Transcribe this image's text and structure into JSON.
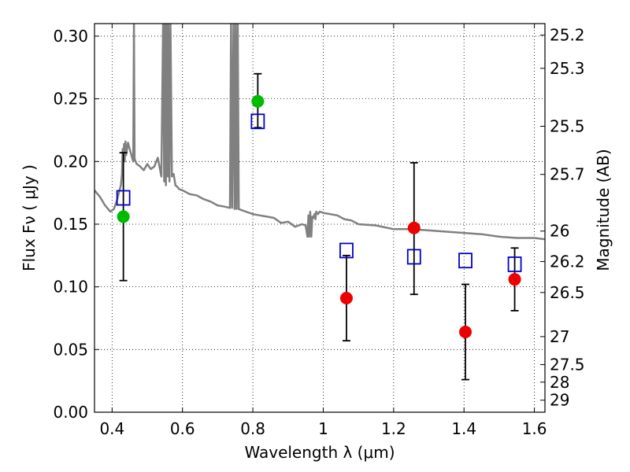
{
  "chart_data": {
    "type": "scatter",
    "xlabel": "Wavelength  λ (μm)",
    "ylabel": "Flux  Fν ( μJy )",
    "y2label": "Magnitude (AB)",
    "xlim": [
      0.35,
      1.63
    ],
    "ylim": [
      0.0,
      0.31
    ],
    "grid": true,
    "x_ticks": [
      {
        "value": 0.4,
        "label": "0.4"
      },
      {
        "value": 0.6,
        "label": "0.6"
      },
      {
        "value": 0.8,
        "label": "0.8"
      },
      {
        "value": 1.0,
        "label": "1"
      },
      {
        "value": 1.2,
        "label": "1.2"
      },
      {
        "value": 1.4,
        "label": "1.4"
      },
      {
        "value": 1.6,
        "label": "1.6"
      }
    ],
    "y_ticks": [
      {
        "value": 0.0,
        "label": "0.00"
      },
      {
        "value": 0.05,
        "label": "0.05"
      },
      {
        "value": 0.1,
        "label": "0.10"
      },
      {
        "value": 0.15,
        "label": "0.15"
      },
      {
        "value": 0.2,
        "label": "0.20"
      },
      {
        "value": 0.25,
        "label": "0.25"
      },
      {
        "value": 0.3,
        "label": "0.30"
      }
    ],
    "y2_ticks": [
      {
        "flux": 0.3008,
        "label": "25.2"
      },
      {
        "flux": 0.2743,
        "label": "25.3"
      },
      {
        "flux": 0.2281,
        "label": "25.5"
      },
      {
        "flux": 0.1897,
        "label": "25.7"
      },
      {
        "flux": 0.1445,
        "label": "26"
      },
      {
        "flux": 0.1202,
        "label": "26.2"
      },
      {
        "flux": 0.0955,
        "label": "26.5"
      },
      {
        "flux": 0.0603,
        "label": "27"
      },
      {
        "flux": 0.038,
        "label": "27.5"
      },
      {
        "flux": 0.024,
        "label": "28"
      },
      {
        "flux": 0.0096,
        "label": "29"
      }
    ],
    "series": [
      {
        "kind": "observed_green",
        "color": "#00bb00",
        "points": [
          {
            "x": 0.432,
            "y": 0.156,
            "yerr_low": 0.105,
            "yerr_high": 0.207
          },
          {
            "x": 0.814,
            "y": 0.248,
            "yerr_low": 0.227,
            "yerr_high": 0.27
          }
        ]
      },
      {
        "kind": "observed_red",
        "color": "#ee0000",
        "points": [
          {
            "x": 1.066,
            "y": 0.091,
            "yerr_low": 0.057,
            "yerr_high": 0.125
          },
          {
            "x": 1.258,
            "y": 0.147,
            "yerr_low": 0.094,
            "yerr_high": 0.199
          },
          {
            "x": 1.404,
            "y": 0.064,
            "yerr_low": 0.026,
            "yerr_high": 0.102
          },
          {
            "x": 1.544,
            "y": 0.106,
            "yerr_low": 0.081,
            "yerr_high": 0.131
          }
        ]
      },
      {
        "kind": "model_squares",
        "color": "#0000cc",
        "points": [
          {
            "x": 0.432,
            "y": 0.171
          },
          {
            "x": 0.814,
            "y": 0.232
          },
          {
            "x": 1.066,
            "y": 0.129
          },
          {
            "x": 1.258,
            "y": 0.124
          },
          {
            "x": 1.404,
            "y": 0.121
          },
          {
            "x": 1.544,
            "y": 0.118
          }
        ]
      },
      {
        "kind": "model_spectrum",
        "color": "#808080",
        "x": [
          0.35,
          0.365,
          0.38,
          0.395,
          0.405,
          0.415,
          0.42,
          0.425,
          0.428,
          0.43,
          0.432,
          0.434,
          0.436,
          0.438,
          0.44,
          0.445,
          0.45,
          0.455,
          0.46,
          0.462,
          0.464,
          0.47,
          0.48,
          0.49,
          0.5,
          0.51,
          0.52,
          0.53,
          0.54,
          0.545,
          0.548,
          0.55,
          0.553,
          0.555,
          0.558,
          0.56,
          0.563,
          0.566,
          0.57,
          0.575,
          0.58,
          0.585,
          0.59,
          0.6,
          0.62,
          0.64,
          0.66,
          0.68,
          0.7,
          0.72,
          0.735,
          0.738,
          0.741,
          0.745,
          0.748,
          0.751,
          0.754,
          0.757,
          0.76,
          0.78,
          0.8,
          0.82,
          0.84,
          0.86,
          0.88,
          0.9,
          0.92,
          0.94,
          0.95,
          0.955,
          0.958,
          0.96,
          0.963,
          0.966,
          0.969,
          0.972,
          0.975,
          0.978,
          0.98,
          0.985,
          0.99,
          1.0,
          1.02,
          1.04,
          1.06,
          1.08,
          1.1,
          1.15,
          1.2,
          1.25,
          1.3,
          1.35,
          1.4,
          1.45,
          1.5,
          1.55,
          1.6,
          1.63
        ],
        "y": [
          0.177,
          0.172,
          0.165,
          0.16,
          0.162,
          0.17,
          0.176,
          0.181,
          0.19,
          0.21,
          0.2,
          0.214,
          0.2,
          0.216,
          0.205,
          0.215,
          0.21,
          0.205,
          0.2,
          0.31,
          0.202,
          0.198,
          0.196,
          0.193,
          0.198,
          0.194,
          0.196,
          0.203,
          0.188,
          0.31,
          0.184,
          0.31,
          0.181,
          0.31,
          0.188,
          0.31,
          0.184,
          0.31,
          0.188,
          0.19,
          0.181,
          0.18,
          0.178,
          0.177,
          0.174,
          0.173,
          0.17,
          0.168,
          0.165,
          0.164,
          0.163,
          0.31,
          0.163,
          0.31,
          0.162,
          0.31,
          0.162,
          0.31,
          0.162,
          0.16,
          0.158,
          0.157,
          0.156,
          0.155,
          0.151,
          0.152,
          0.148,
          0.15,
          0.149,
          0.14,
          0.157,
          0.14,
          0.16,
          0.14,
          0.156,
          0.155,
          0.158,
          0.154,
          0.16,
          0.158,
          0.16,
          0.159,
          0.158,
          0.157,
          0.154,
          0.153,
          0.15,
          0.149,
          0.146,
          0.146,
          0.145,
          0.144,
          0.143,
          0.142,
          0.14,
          0.139,
          0.139,
          0.138
        ]
      }
    ]
  }
}
